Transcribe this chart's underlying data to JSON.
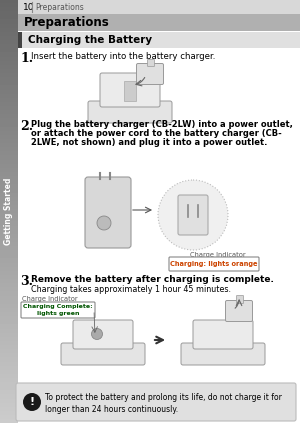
{
  "page_num": "10",
  "page_header": "Preparations",
  "section_title": "Preparations",
  "subsection_title": "Charging the Battery",
  "step1_num": "1.",
  "step1_text": "Insert the battery into the battery charger.",
  "step2_num": "2.",
  "step2_line1": "Plug the battery charger (CB-2LW) into a power outlet,",
  "step2_line2": "or attach the power cord to the battery charger (CB-",
  "step2_line3": "2LWE, not shown) and plug it into a power outlet.",
  "step3_num": "3.",
  "step3_text": "Remove the battery after charging is complete.",
  "step3_sub": "Charging takes approximately 1 hour 45 minutes.",
  "charge_label1": "Charge Indicator",
  "charge_box1": "Charging: lights orange",
  "charge_label2": "Charge Indicator",
  "charge_box2": "Charging Complete:\nlights green",
  "warning_text": "To protect the battery and prolong its life, do not charge it for\nlonger than 24 hours continuously.",
  "sidebar_text": "Getting Started",
  "bg_color": "#ffffff",
  "header_bg": "#d8d8d8",
  "section_bg": "#b0b0b0",
  "subsection_bar_color": "#444444",
  "subsection_bg": "#e0e0e0",
  "sidebar_color_top": "#888888",
  "sidebar_color_bot": "#cccccc",
  "warn_bg": "#e0e0e0",
  "text_dark": "#111111",
  "text_mid": "#555555",
  "orange_text": "#cc4400",
  "green_text": "#005500"
}
